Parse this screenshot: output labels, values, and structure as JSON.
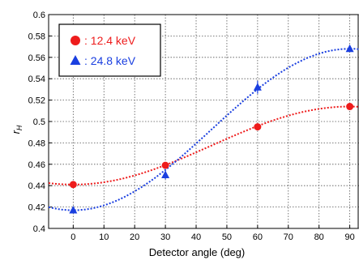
{
  "chart_data": {
    "type": "scatter",
    "title": "",
    "xlabel": "Detector angle (deg)",
    "ylabel_main": "r",
    "ylabel_sub": "H",
    "xlim": [
      -8,
      93
    ],
    "ylim": [
      0.4,
      0.6
    ],
    "xticks": [
      0,
      10,
      20,
      30,
      40,
      50,
      60,
      70,
      80,
      90
    ],
    "yticks": [
      0.4,
      0.42,
      0.44,
      0.46,
      0.48,
      0.5,
      0.52,
      0.54,
      0.56,
      0.58,
      0.6
    ],
    "grid": true,
    "legend_position": "top-left",
    "series": [
      {
        "name": ": 12.4 keV",
        "marker": "circle",
        "color": "#ee1c1c",
        "x": [
          0,
          30,
          60,
          90
        ],
        "y": [
          0.441,
          0.459,
          0.495,
          0.514
        ],
        "err": [
          0.002,
          0.002,
          0.002,
          0.002
        ],
        "fit": "cosine"
      },
      {
        "name": ": 24.8 keV",
        "marker": "triangle",
        "color": "#1a3fe0",
        "x": [
          0,
          30,
          60,
          90
        ],
        "y": [
          0.417,
          0.45,
          0.532,
          0.568
        ],
        "err": [
          0.002,
          0.004,
          0.006,
          0.002
        ],
        "fit": "cosine"
      }
    ]
  }
}
